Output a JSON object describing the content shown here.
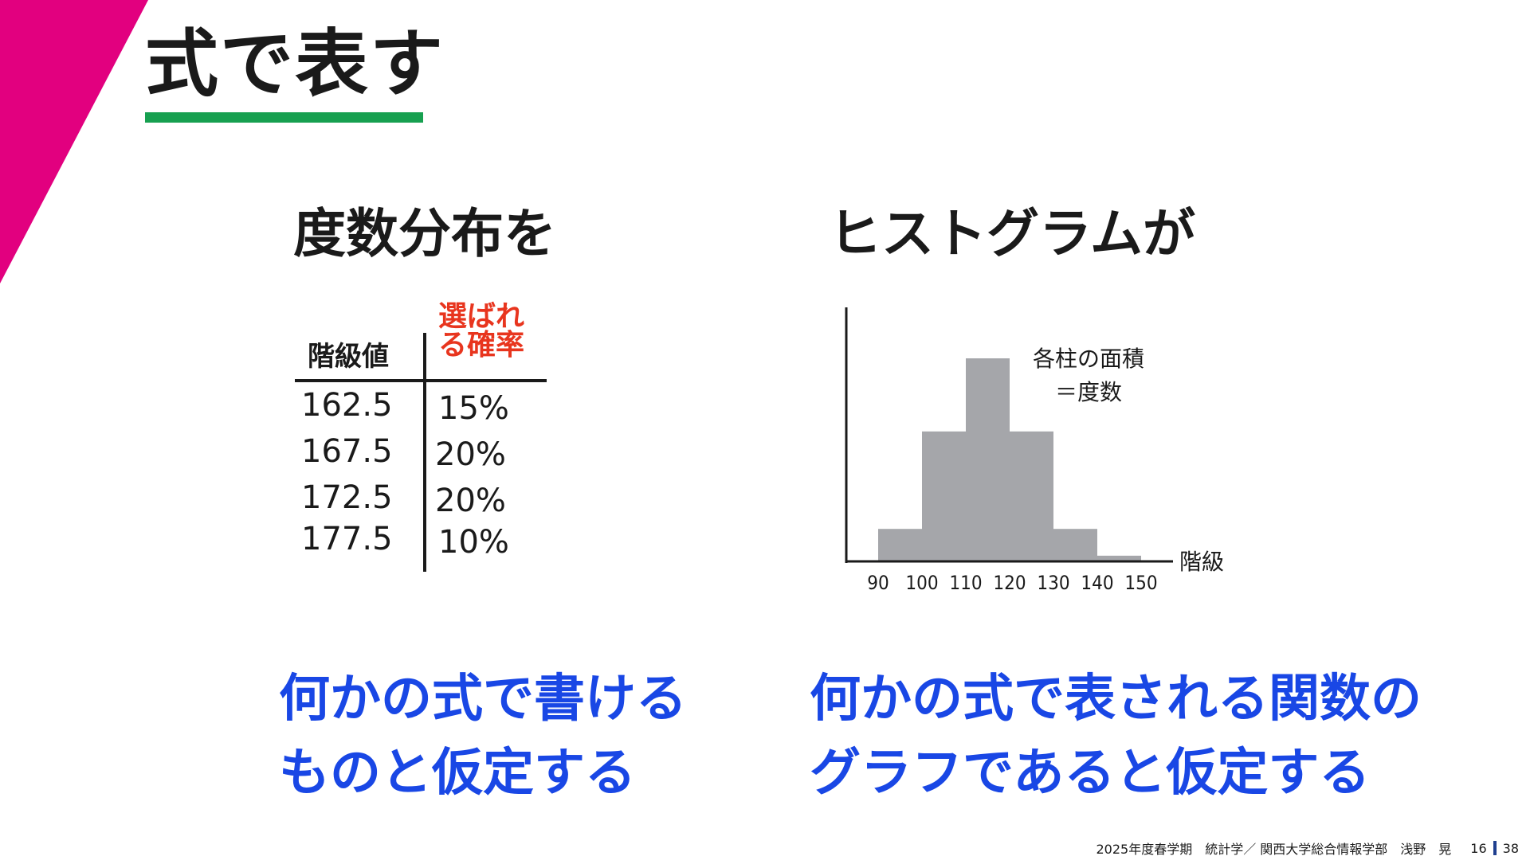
{
  "slide": {
    "title": "式で表す",
    "left_heading": "度数分布を",
    "right_heading": "ヒストグラムが",
    "left_conclusion": [
      "何かの式で書ける",
      "ものと仮定する"
    ],
    "right_conclusion": [
      "何かの式で表される関数の",
      "グラフであると仮定する"
    ]
  },
  "table": {
    "col1_header": "階級値",
    "col2_header": [
      "選ばれ",
      "る確率"
    ],
    "rows": [
      {
        "value": "162.5",
        "prob": "15%"
      },
      {
        "value": "167.5",
        "prob": "20%"
      },
      {
        "value": "172.5",
        "prob": "20%"
      },
      {
        "value": "177.5",
        "prob": "10%"
      }
    ]
  },
  "chart_data": {
    "type": "bar",
    "categories": [
      "90-100",
      "100-110",
      "110-120",
      "120-130",
      "130-140",
      "140-150"
    ],
    "bin_edges": [
      90,
      100,
      110,
      120,
      130,
      140,
      150
    ],
    "tick_labels": [
      "90",
      "100",
      "110",
      "120",
      "130",
      "140",
      "150"
    ],
    "values": [
      4,
      16,
      25,
      16,
      4,
      0.7
    ],
    "xlabel": "階級",
    "ylabel": "",
    "annotation": [
      "各柱の面積",
      "＝度数"
    ],
    "yaxis_ticks": false,
    "grid": false
  },
  "footer": {
    "text": "2025年度春学期　統計学／ 関西大学総合情報学部　浅野　晃",
    "page": "16",
    "total": "38"
  },
  "colors": {
    "accent_corner": "#E2007F",
    "title_underline": "#17A050",
    "emphasis_red": "#E8351E",
    "emphasis_blue": "#1947E5",
    "bar_fill": "#A5A6AA",
    "footer_sep": "#1F3F8F",
    "text": "#1a1a1a"
  }
}
